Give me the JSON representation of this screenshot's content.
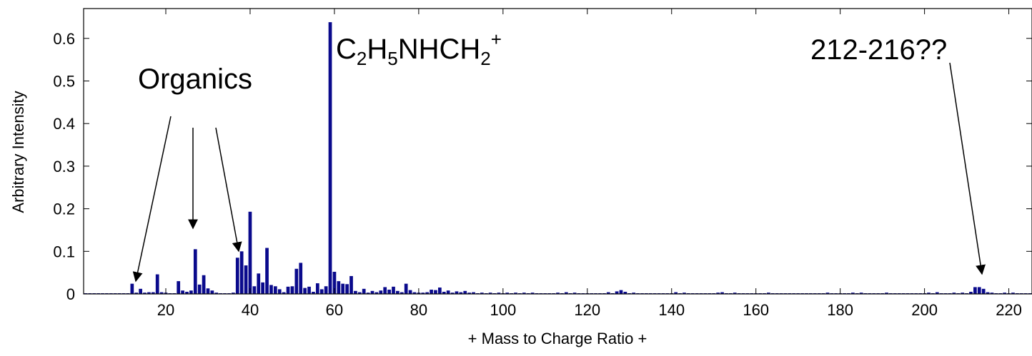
{
  "chart_data": {
    "type": "bar",
    "xlabel": "+ Mass to Charge Ratio +",
    "ylabel": "Arbitrary Intensity",
    "xlim": [
      0.5,
      225.5
    ],
    "ylim": [
      0,
      0.67
    ],
    "xticks": [
      20,
      40,
      60,
      80,
      100,
      120,
      140,
      160,
      180,
      200,
      220
    ],
    "xtick_labels": [
      "20",
      "40",
      "60",
      "80",
      "100",
      "120",
      "140",
      "160",
      "180",
      "200",
      "220"
    ],
    "yticks": [
      0,
      0.1,
      0.2,
      0.3,
      0.4,
      0.5,
      0.6
    ],
    "ytick_labels": [
      "0",
      "0.1",
      "0.2",
      "0.3",
      "0.4",
      "0.5",
      "0.6"
    ],
    "bar_color": "#0a0a8c",
    "baseline": 0.0015,
    "points": [
      {
        "x": 12,
        "y": 0.024
      },
      {
        "x": 13,
        "y": 0.003
      },
      {
        "x": 14,
        "y": 0.012
      },
      {
        "x": 15,
        "y": 0.003
      },
      {
        "x": 16,
        "y": 0.004
      },
      {
        "x": 17,
        "y": 0.004
      },
      {
        "x": 18,
        "y": 0.046
      },
      {
        "x": 19,
        "y": 0.004
      },
      {
        "x": 20,
        "y": 0.003
      },
      {
        "x": 23,
        "y": 0.03
      },
      {
        "x": 24,
        "y": 0.008
      },
      {
        "x": 25,
        "y": 0.005
      },
      {
        "x": 26,
        "y": 0.008
      },
      {
        "x": 27,
        "y": 0.105
      },
      {
        "x": 28,
        "y": 0.022
      },
      {
        "x": 29,
        "y": 0.044
      },
      {
        "x": 30,
        "y": 0.013
      },
      {
        "x": 31,
        "y": 0.008
      },
      {
        "x": 32,
        "y": 0.003
      },
      {
        "x": 36,
        "y": 0.003
      },
      {
        "x": 37,
        "y": 0.085
      },
      {
        "x": 38,
        "y": 0.1
      },
      {
        "x": 39,
        "y": 0.067
      },
      {
        "x": 40,
        "y": 0.193
      },
      {
        "x": 41,
        "y": 0.018
      },
      {
        "x": 42,
        "y": 0.048
      },
      {
        "x": 43,
        "y": 0.027
      },
      {
        "x": 44,
        "y": 0.108
      },
      {
        "x": 45,
        "y": 0.021
      },
      {
        "x": 46,
        "y": 0.018
      },
      {
        "x": 47,
        "y": 0.011
      },
      {
        "x": 48,
        "y": 0.004
      },
      {
        "x": 49,
        "y": 0.017
      },
      {
        "x": 50,
        "y": 0.018
      },
      {
        "x": 51,
        "y": 0.059
      },
      {
        "x": 52,
        "y": 0.073
      },
      {
        "x": 53,
        "y": 0.014
      },
      {
        "x": 54,
        "y": 0.017
      },
      {
        "x": 55,
        "y": 0.005
      },
      {
        "x": 56,
        "y": 0.025
      },
      {
        "x": 57,
        "y": 0.011
      },
      {
        "x": 58,
        "y": 0.018
      },
      {
        "x": 59,
        "y": 0.638
      },
      {
        "x": 60,
        "y": 0.052
      },
      {
        "x": 61,
        "y": 0.03
      },
      {
        "x": 62,
        "y": 0.024
      },
      {
        "x": 63,
        "y": 0.023
      },
      {
        "x": 64,
        "y": 0.042
      },
      {
        "x": 65,
        "y": 0.007
      },
      {
        "x": 66,
        "y": 0.004
      },
      {
        "x": 67,
        "y": 0.012
      },
      {
        "x": 68,
        "y": 0.003
      },
      {
        "x": 69,
        "y": 0.007
      },
      {
        "x": 70,
        "y": 0.004
      },
      {
        "x": 71,
        "y": 0.008
      },
      {
        "x": 72,
        "y": 0.016
      },
      {
        "x": 73,
        "y": 0.01
      },
      {
        "x": 74,
        "y": 0.017
      },
      {
        "x": 75,
        "y": 0.007
      },
      {
        "x": 76,
        "y": 0.004
      },
      {
        "x": 77,
        "y": 0.024
      },
      {
        "x": 78,
        "y": 0.009
      },
      {
        "x": 79,
        "y": 0.004
      },
      {
        "x": 80,
        "y": 0.003
      },
      {
        "x": 81,
        "y": 0.003
      },
      {
        "x": 82,
        "y": 0.004
      },
      {
        "x": 83,
        "y": 0.01
      },
      {
        "x": 84,
        "y": 0.009
      },
      {
        "x": 85,
        "y": 0.015
      },
      {
        "x": 86,
        "y": 0.005
      },
      {
        "x": 87,
        "y": 0.008
      },
      {
        "x": 88,
        "y": 0.003
      },
      {
        "x": 89,
        "y": 0.006
      },
      {
        "x": 90,
        "y": 0.004
      },
      {
        "x": 91,
        "y": 0.007
      },
      {
        "x": 92,
        "y": 0.003
      },
      {
        "x": 93,
        "y": 0.004
      },
      {
        "x": 95,
        "y": 0.003
      },
      {
        "x": 97,
        "y": 0.003
      },
      {
        "x": 99,
        "y": 0.003
      },
      {
        "x": 101,
        "y": 0.003
      },
      {
        "x": 103,
        "y": 0.003
      },
      {
        "x": 105,
        "y": 0.003
      },
      {
        "x": 107,
        "y": 0.003
      },
      {
        "x": 113,
        "y": 0.003
      },
      {
        "x": 115,
        "y": 0.004
      },
      {
        "x": 117,
        "y": 0.003
      },
      {
        "x": 125,
        "y": 0.004
      },
      {
        "x": 127,
        "y": 0.006
      },
      {
        "x": 128,
        "y": 0.009
      },
      {
        "x": 129,
        "y": 0.005
      },
      {
        "x": 131,
        "y": 0.003
      },
      {
        "x": 141,
        "y": 0.004
      },
      {
        "x": 143,
        "y": 0.003
      },
      {
        "x": 151,
        "y": 0.003
      },
      {
        "x": 152,
        "y": 0.004
      },
      {
        "x": 155,
        "y": 0.003
      },
      {
        "x": 163,
        "y": 0.003
      },
      {
        "x": 177,
        "y": 0.003
      },
      {
        "x": 183,
        "y": 0.003
      },
      {
        "x": 185,
        "y": 0.003
      },
      {
        "x": 191,
        "y": 0.003
      },
      {
        "x": 201,
        "y": 0.003
      },
      {
        "x": 203,
        "y": 0.004
      },
      {
        "x": 207,
        "y": 0.003
      },
      {
        "x": 209,
        "y": 0.003
      },
      {
        "x": 211,
        "y": 0.005
      },
      {
        "x": 212,
        "y": 0.016
      },
      {
        "x": 213,
        "y": 0.016
      },
      {
        "x": 214,
        "y": 0.012
      },
      {
        "x": 215,
        "y": 0.004
      },
      {
        "x": 216,
        "y": 0.003
      },
      {
        "x": 219,
        "y": 0.003
      },
      {
        "x": 221,
        "y": 0.003
      }
    ],
    "annotations": [
      {
        "id": "organics",
        "text": "Organics",
        "arrows_to_x": [
          13,
          27,
          38
        ]
      },
      {
        "id": "c2h5nhch2",
        "parts": [
          "C",
          "2",
          "H",
          "5",
          "NHCH",
          "2",
          "+"
        ],
        "points_to_x": 59
      },
      {
        "id": "high-mass",
        "text": "212-216??",
        "arrows_to_x": [
          213
        ]
      }
    ]
  }
}
